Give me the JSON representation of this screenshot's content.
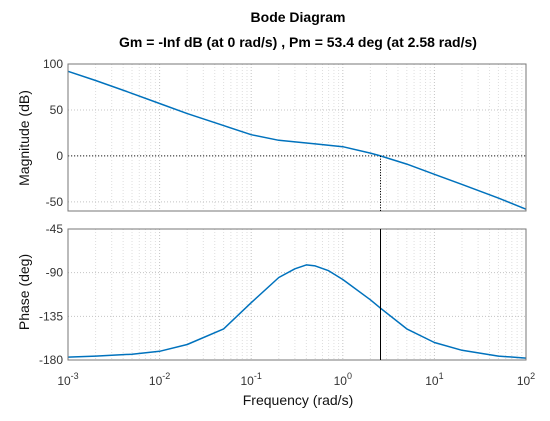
{
  "chart_data": {
    "type": "line",
    "title": "Bode Diagram",
    "subtitle": "Gm = -Inf dB (at 0 rad/s) ,  Pm = 53.4 deg (at 2.58 rad/s)",
    "xlabel": "Frequency  (rad/s)",
    "x_scale": "log",
    "xlim": [
      0.001,
      100
    ],
    "x_ticks": [
      {
        "value": 0.001,
        "base": "10",
        "exp": "-3"
      },
      {
        "value": 0.01,
        "base": "10",
        "exp": "-2"
      },
      {
        "value": 0.1,
        "base": "10",
        "exp": "-1"
      },
      {
        "value": 1,
        "base": "10",
        "exp": "0"
      },
      {
        "value": 10,
        "base": "10",
        "exp": "1"
      },
      {
        "value": 100,
        "base": "10",
        "exp": "2"
      }
    ],
    "grid": true,
    "line_color": "#0072bd",
    "marker": {
      "frequency": 2.58,
      "magnitude_db": 0,
      "phase_deg": -126.6
    },
    "magnitude": {
      "ylabel": "Magnitude (dB)",
      "ylim": [
        -60,
        100
      ],
      "yticks": [
        100,
        50,
        0,
        -50
      ],
      "x": [
        0.001,
        0.002,
        0.005,
        0.01,
        0.02,
        0.05,
        0.1,
        0.2,
        0.5,
        1,
        2,
        2.58,
        5,
        10,
        20,
        50,
        100
      ],
      "y": [
        92,
        82,
        68,
        57,
        46,
        33,
        23,
        17,
        13,
        10,
        3,
        0,
        -9,
        -20,
        -31,
        -46,
        -58
      ]
    },
    "phase": {
      "ylabel": "Phase (deg)",
      "ylim": [
        -180,
        -45
      ],
      "yticks": [
        -45,
        -90,
        -135,
        -180
      ],
      "x": [
        0.001,
        0.002,
        0.005,
        0.01,
        0.02,
        0.05,
        0.1,
        0.2,
        0.3,
        0.4,
        0.5,
        0.7,
        1,
        2,
        2.58,
        5,
        10,
        20,
        50,
        100
      ],
      "y": [
        -177,
        -176,
        -174,
        -171,
        -164,
        -148,
        -121,
        -95,
        -86,
        -82,
        -83,
        -88,
        -97,
        -118,
        -126.6,
        -148,
        -162,
        -170,
        -176,
        -178
      ]
    }
  }
}
